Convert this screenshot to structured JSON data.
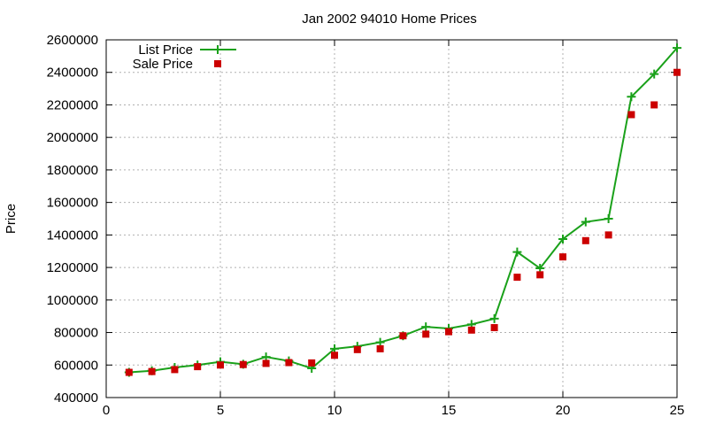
{
  "chart_data": {
    "type": "line",
    "title": "Jan 2002 94010 Home Prices",
    "xlabel": "",
    "ylabel": "Price",
    "xlim": [
      0,
      25
    ],
    "ylim": [
      400000,
      2600000
    ],
    "xticks": [
      0,
      5,
      10,
      15,
      20,
      25
    ],
    "yticks": [
      400000,
      600000,
      800000,
      1000000,
      1200000,
      1400000,
      1600000,
      1800000,
      2000000,
      2200000,
      2400000,
      2600000
    ],
    "xtick_labels": [
      "0",
      "5",
      "10",
      "15",
      "20",
      "25"
    ],
    "ytick_labels": [
      "400000",
      "600000",
      "800000",
      "1000000",
      "1200000",
      "1400000",
      "1600000",
      "1800000",
      "2000000",
      "2200000",
      "2400000",
      "2600000"
    ],
    "grid": true,
    "legend_position": "top-left",
    "x": [
      1,
      2,
      3,
      4,
      5,
      6,
      7,
      8,
      9,
      10,
      11,
      12,
      13,
      14,
      15,
      16,
      17,
      18,
      19,
      20,
      21,
      22,
      23,
      24,
      25
    ],
    "series": [
      {
        "name": "List Price",
        "style": "lines+points",
        "marker": "plus",
        "color": "#1aa11a",
        "values": [
          555000,
          565000,
          585000,
          600000,
          620000,
          605000,
          650000,
          625000,
          580000,
          700000,
          715000,
          740000,
          780000,
          835000,
          825000,
          850000,
          885000,
          1295000,
          1195000,
          1375000,
          1480000,
          1500000,
          2250000,
          2390000,
          2550000
        ]
      },
      {
        "name": "Sale Price",
        "style": "points",
        "marker": "square",
        "color": "#cc0000",
        "values": [
          555000,
          560000,
          572000,
          590000,
          600000,
          603000,
          610000,
          615000,
          613000,
          660000,
          695000,
          700000,
          780000,
          790000,
          805000,
          815000,
          830000,
          1140000,
          1155000,
          1265000,
          1365000,
          1400000,
          2140000,
          2200000,
          2400000
        ]
      }
    ]
  }
}
